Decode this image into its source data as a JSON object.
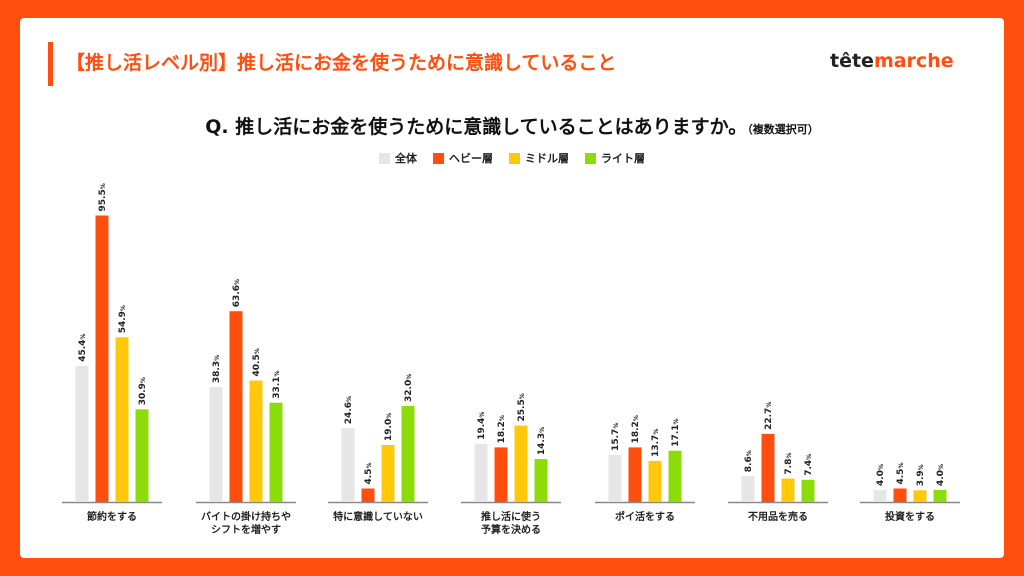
{
  "slide_title": "【推し活レベル別】推し活にお金を使うために意識していること",
  "logo": {
    "part1": "tête",
    "part2": "marche"
  },
  "question": {
    "text": "Q. 推し活にお金を使うために意識していることはありますか。",
    "note": "（複数選択可）"
  },
  "colors": {
    "accent": "#FF4E0E",
    "all": "#E6E6E6",
    "heavy": "#FF4E0E",
    "middle": "#FFC80A",
    "light": "#8CDC0A"
  },
  "chart_data": {
    "type": "bar",
    "value_suffix": "%",
    "ylim": [
      0,
      100
    ],
    "categories": [
      "節約をする",
      "バイトの掛け持ちや\nシフトを増やす",
      "特に意識していない",
      "推し活に使う\n予算を決める",
      "ポイ活をする",
      "不用品を売る",
      "投資をする"
    ],
    "series": [
      {
        "name": "全体",
        "color": "#E6E6E6",
        "values": [
          45.4,
          38.3,
          24.6,
          19.4,
          15.7,
          8.6,
          4.0
        ]
      },
      {
        "name": "ヘビー層",
        "color": "#FF4E0E",
        "values": [
          95.5,
          63.6,
          4.5,
          18.2,
          18.2,
          22.7,
          4.5
        ]
      },
      {
        "name": "ミドル層",
        "color": "#FFC80A",
        "values": [
          54.9,
          40.5,
          19.0,
          25.5,
          13.7,
          7.8,
          3.9
        ]
      },
      {
        "name": "ライト層",
        "color": "#8CDC0A",
        "values": [
          30.9,
          33.1,
          32.0,
          14.3,
          17.1,
          7.4,
          4.0
        ]
      }
    ]
  }
}
